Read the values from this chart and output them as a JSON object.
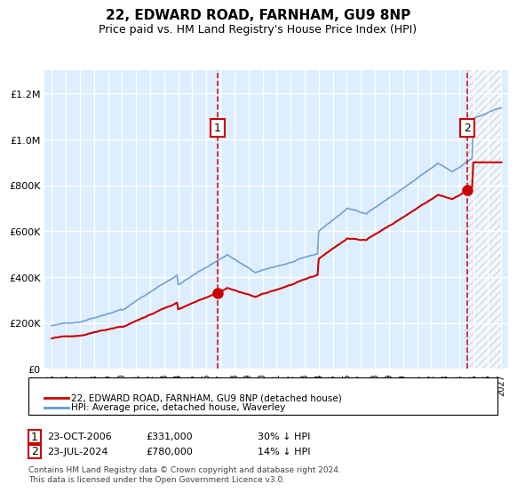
{
  "title": "22, EDWARD ROAD, FARNHAM, GU9 8NP",
  "subtitle": "Price paid vs. HM Land Registry's House Price Index (HPI)",
  "red_label": "22, EDWARD ROAD, FARNHAM, GU9 8NP (detached house)",
  "blue_label": "HPI: Average price, detached house, Waverley",
  "annotation1_label": "1",
  "annotation1_date": "23-OCT-2006",
  "annotation1_price": 331000,
  "annotation1_text": "£331,000    30% ↓ HPI",
  "annotation2_label": "2",
  "annotation2_date": "23-JUL-2024",
  "annotation2_price": 780000,
  "annotation2_text": "£780,000    14% ↓ HPI",
  "year_start": 1995,
  "year_end": 2027,
  "ylim_max": 1400000,
  "background_color": "#ddeeff",
  "hatch_color": "#cccccc",
  "red_line_color": "#cc0000",
  "blue_line_color": "#6699cc",
  "grid_color": "#ffffff",
  "sale1_x": 2006.81,
  "sale2_x": 2024.56,
  "footer": "Contains HM Land Registry data © Crown copyright and database right 2024.\nThis data is licensed under the Open Government Licence v3.0."
}
